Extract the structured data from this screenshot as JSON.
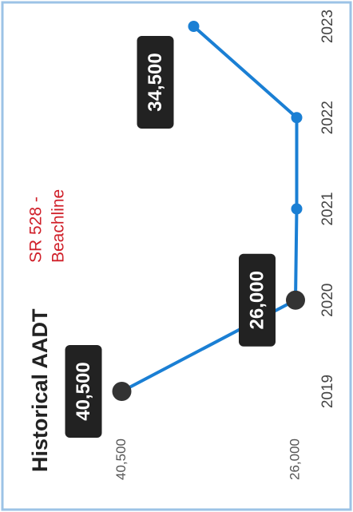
{
  "chart_data": {
    "type": "line",
    "title": "Historical AADT",
    "subtitle": [
      "SR 528 -",
      "Beachline"
    ],
    "categories": [
      "2019",
      "2020",
      "2021",
      "2022",
      "2023"
    ],
    "series": [
      {
        "name": "AADT",
        "color": "#1a7fd4",
        "values": [
          40500,
          26000,
          25900,
          25900,
          34500
        ],
        "value_labels": [
          "40,500",
          "26,000",
          null,
          null,
          "34,500"
        ],
        "marker_colors": [
          "#333333",
          "#333333",
          "#1a7fd4",
          "#1a7fd4",
          "#1a7fd4"
        ]
      }
    ],
    "ylim": [
      24000,
      42000
    ],
    "yticks": [
      {
        "value": 26000,
        "label": "26,000"
      },
      {
        "value": 40500,
        "label": "40,500"
      }
    ],
    "grid": false
  }
}
